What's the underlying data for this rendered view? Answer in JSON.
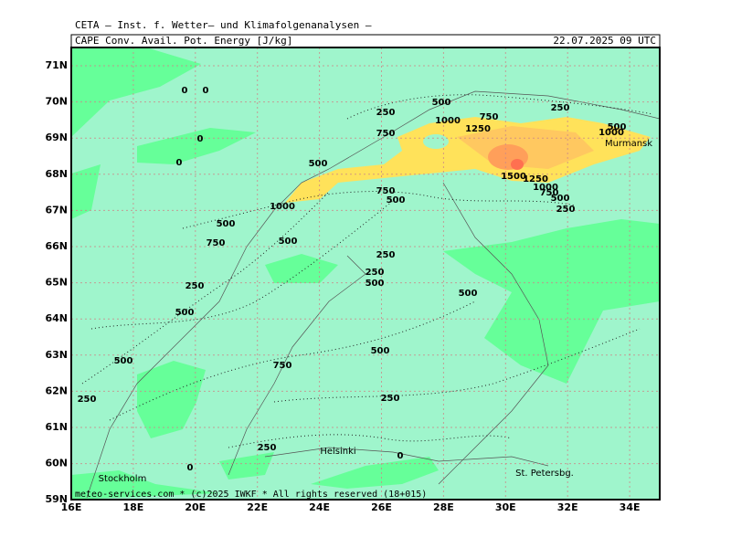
{
  "header": {
    "institute": "CETA — Inst. f. Wetter— und Klimafolgenanalysen —",
    "field": "CAPE Conv. Avail. Pot. Energy [J/kg]",
    "valid_time": "22.07.2025 09 UTC"
  },
  "footer": "meteo-services.com * (c)2025 IWKF * All rights reserved (18+015)",
  "axes": {
    "lat_labels": [
      "71N",
      "70N",
      "69N",
      "68N",
      "67N",
      "66N",
      "65N",
      "64N",
      "63N",
      "62N",
      "61N",
      "60N",
      "59N"
    ],
    "lon_labels": [
      "16E",
      "18E",
      "20E",
      "22E",
      "24E",
      "26E",
      "28E",
      "30E",
      "32E",
      "34E"
    ]
  },
  "cities": [
    "Stockholm",
    "Helsinki",
    "St. Petersbg.",
    "Murmansk"
  ],
  "contour_labels": [
    0,
    0,
    0,
    0,
    500,
    250,
    1000,
    750,
    250,
    1250,
    750,
    500,
    1000,
    500,
    1500,
    1250,
    1000,
    750,
    500,
    250,
    750,
    500,
    1000,
    500,
    750,
    500,
    250,
    250,
    500,
    250,
    500,
    500,
    500,
    500,
    750,
    250,
    250,
    250,
    0,
    0
  ]
}
